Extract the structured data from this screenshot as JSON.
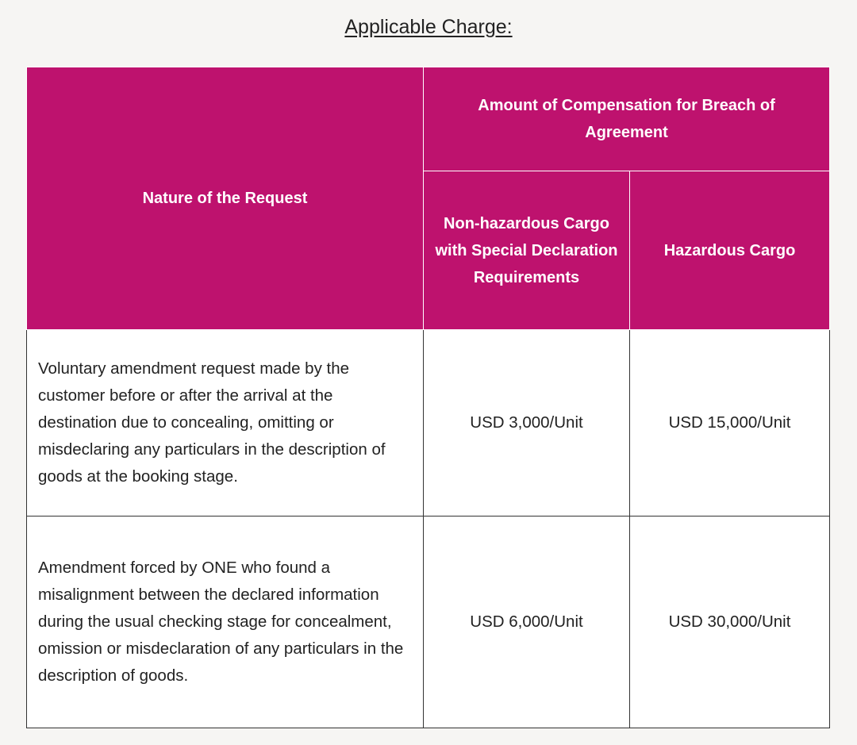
{
  "title": "Applicable Charge:",
  "table": {
    "header": {
      "nature": "Nature of the Request",
      "amount": "Amount of Compensation for Breach of Agreement",
      "non_hazardous": "Non-hazardous Cargo with Special Declaration Requirements",
      "hazardous": "Hazardous Cargo"
    },
    "rows": [
      {
        "nature": "Voluntary amendment request made by the customer before or after the arrival at the destination due to concealing, omitting or misdeclaring any particulars in the description of goods at the booking stage.",
        "non_hazardous": "USD 3,000/Unit",
        "hazardous": "USD 15,000/Unit"
      },
      {
        "nature": "Amendment forced by ONE who found a misalignment between the declared information during the usual checking stage for concealment, omission or misdeclaration of any particulars in the description of goods.",
        "non_hazardous": "USD 6,000/Unit",
        "hazardous": "USD 30,000/Unit"
      }
    ]
  },
  "colors": {
    "header_bg": "#be126e",
    "page_bg": "#f6f5f3"
  }
}
